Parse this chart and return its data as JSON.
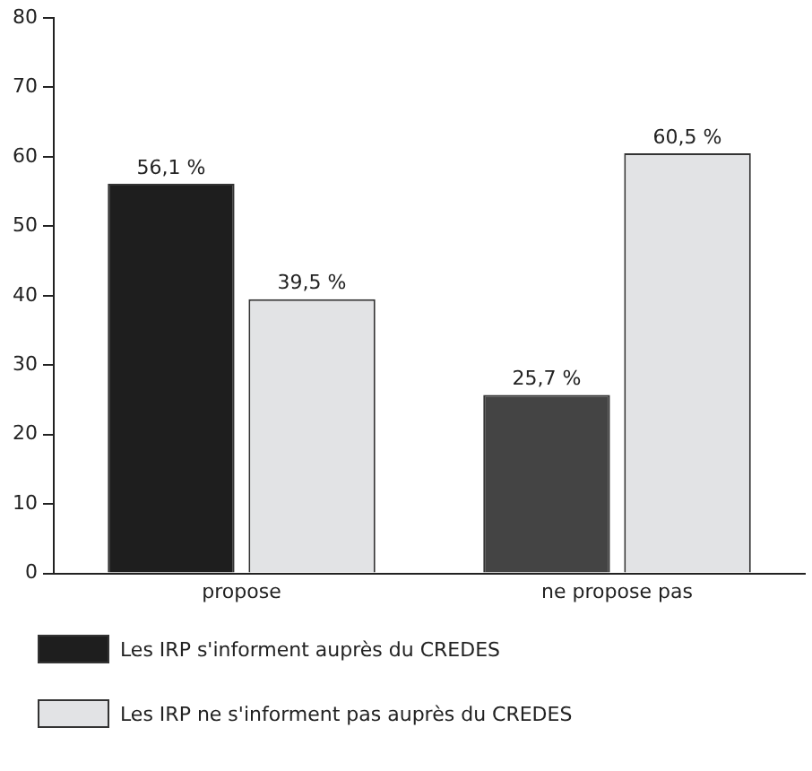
{
  "chart_data": {
    "type": "bar",
    "categories": [
      "propose",
      "ne propose pas"
    ],
    "series": [
      {
        "name": "Les IRP s'informent auprès du CREDES",
        "color": "#1e1e1e",
        "colors": [
          "#1e1e1e",
          "#444444"
        ],
        "values": [
          56.1,
          25.7
        ],
        "value_labels": [
          "56,1 %",
          "25,7 %"
        ]
      },
      {
        "name": "Les IRP ne s'informent pas auprès du CREDES",
        "color": "#e2e3e5",
        "values": [
          39.5,
          60.5
        ],
        "value_labels": [
          "39,5 %",
          "60,5 %"
        ]
      }
    ],
    "ylim": [
      0,
      80
    ],
    "yticks": [
      0,
      10,
      20,
      30,
      40,
      50,
      60,
      70,
      80
    ],
    "grid": false,
    "legend": "bottom"
  }
}
